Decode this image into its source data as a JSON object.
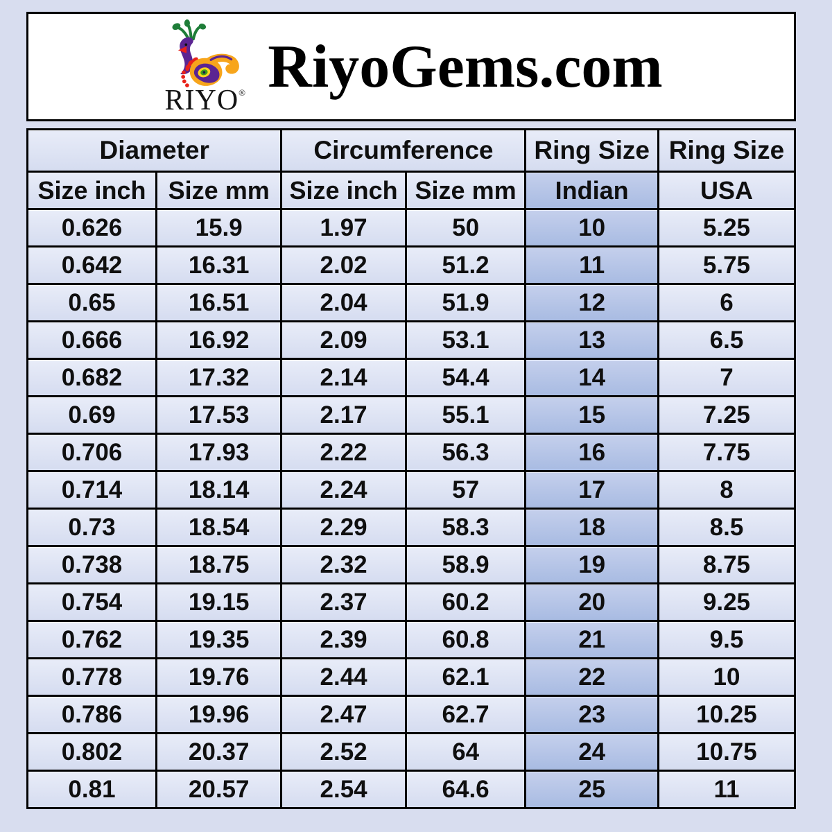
{
  "page": {
    "background": "#d8ddef"
  },
  "header": {
    "logo": {
      "brand": "RIYO",
      "registered": "®",
      "icon": "peacock-icon"
    },
    "title": "RiyoGems.com"
  },
  "table": {
    "groups": [
      {
        "label": "Diameter",
        "span": 2
      },
      {
        "label": "Circumference",
        "span": 2
      },
      {
        "label": "Ring Size",
        "span": 1
      },
      {
        "label": "Ring Size",
        "span": 1
      }
    ],
    "subheaders": [
      "Size inch",
      "Size mm",
      "Size inch",
      "Size mm",
      "Indian",
      "USA"
    ],
    "highlight_column_index": 4
  },
  "colors": {
    "cell_light": "#dce3f4",
    "cell_highlight": "#aebfe4",
    "border": "#000000",
    "header_panel": "#ffffff",
    "logo_purple": "#5b2492",
    "logo_orange": "#f7a51b",
    "logo_green": "#1e7d38",
    "logo_red": "#e8221a"
  },
  "chart_data": {
    "type": "table",
    "title": "RiyoGems.com",
    "columns": [
      "Diameter Size inch",
      "Diameter Size mm",
      "Circumference Size inch",
      "Circumference Size mm",
      "Ring Size Indian",
      "Ring Size USA"
    ],
    "rows": [
      [
        0.626,
        15.9,
        1.97,
        50,
        10,
        5.25
      ],
      [
        0.642,
        16.31,
        2.02,
        51.2,
        11,
        5.75
      ],
      [
        0.65,
        16.51,
        2.04,
        51.9,
        12,
        6
      ],
      [
        0.666,
        16.92,
        2.09,
        53.1,
        13,
        6.5
      ],
      [
        0.682,
        17.32,
        2.14,
        54.4,
        14,
        7
      ],
      [
        0.69,
        17.53,
        2.17,
        55.1,
        15,
        7.25
      ],
      [
        0.706,
        17.93,
        2.22,
        56.3,
        16,
        7.75
      ],
      [
        0.714,
        18.14,
        2.24,
        57,
        17,
        8
      ],
      [
        0.73,
        18.54,
        2.29,
        58.3,
        18,
        8.5
      ],
      [
        0.738,
        18.75,
        2.32,
        58.9,
        19,
        8.75
      ],
      [
        0.754,
        19.15,
        2.37,
        60.2,
        20,
        9.25
      ],
      [
        0.762,
        19.35,
        2.39,
        60.8,
        21,
        9.5
      ],
      [
        0.778,
        19.76,
        2.44,
        62.1,
        22,
        10
      ],
      [
        0.786,
        19.96,
        2.47,
        62.7,
        23,
        10.25
      ],
      [
        0.802,
        20.37,
        2.52,
        64,
        24,
        10.75
      ],
      [
        0.81,
        20.57,
        2.54,
        64.6,
        25,
        11
      ]
    ]
  }
}
